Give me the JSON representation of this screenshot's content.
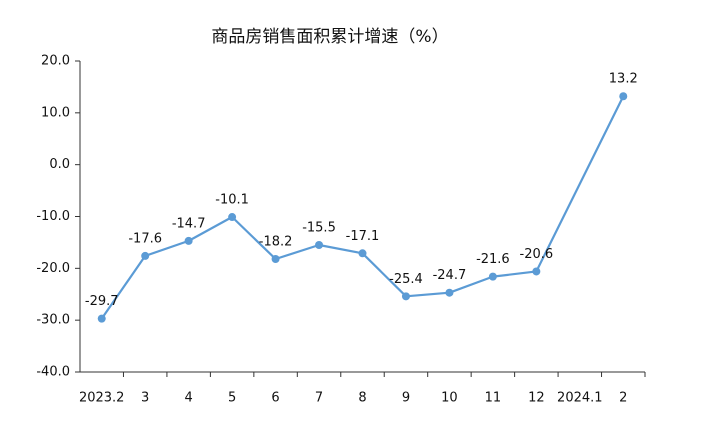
{
  "chart_data": {
    "type": "line",
    "title": "商品房销售面积累计增速（%）",
    "categories": [
      "2023.2",
      "3",
      "4",
      "5",
      "6",
      "7",
      "8",
      "9",
      "10",
      "11",
      "12",
      "2024.1",
      "2"
    ],
    "values": [
      -29.7,
      -17.6,
      -14.7,
      -10.1,
      -18.2,
      -15.5,
      -17.1,
      -25.4,
      -24.7,
      -21.6,
      -20.6,
      null,
      13.2
    ],
    "color": "#5b9bd5",
    "ylim": [
      -40,
      20
    ],
    "yticks": [
      {
        "value": -40,
        "label": "-40.0"
      },
      {
        "value": -30,
        "label": "-30.0"
      },
      {
        "value": -20,
        "label": "-20.0"
      },
      {
        "value": -10,
        "label": "-10.0"
      },
      {
        "value": 0,
        "label": "0.0"
      },
      {
        "value": 10,
        "label": "10.0"
      },
      {
        "value": 20,
        "label": "20.0"
      }
    ],
    "grid": false
  }
}
